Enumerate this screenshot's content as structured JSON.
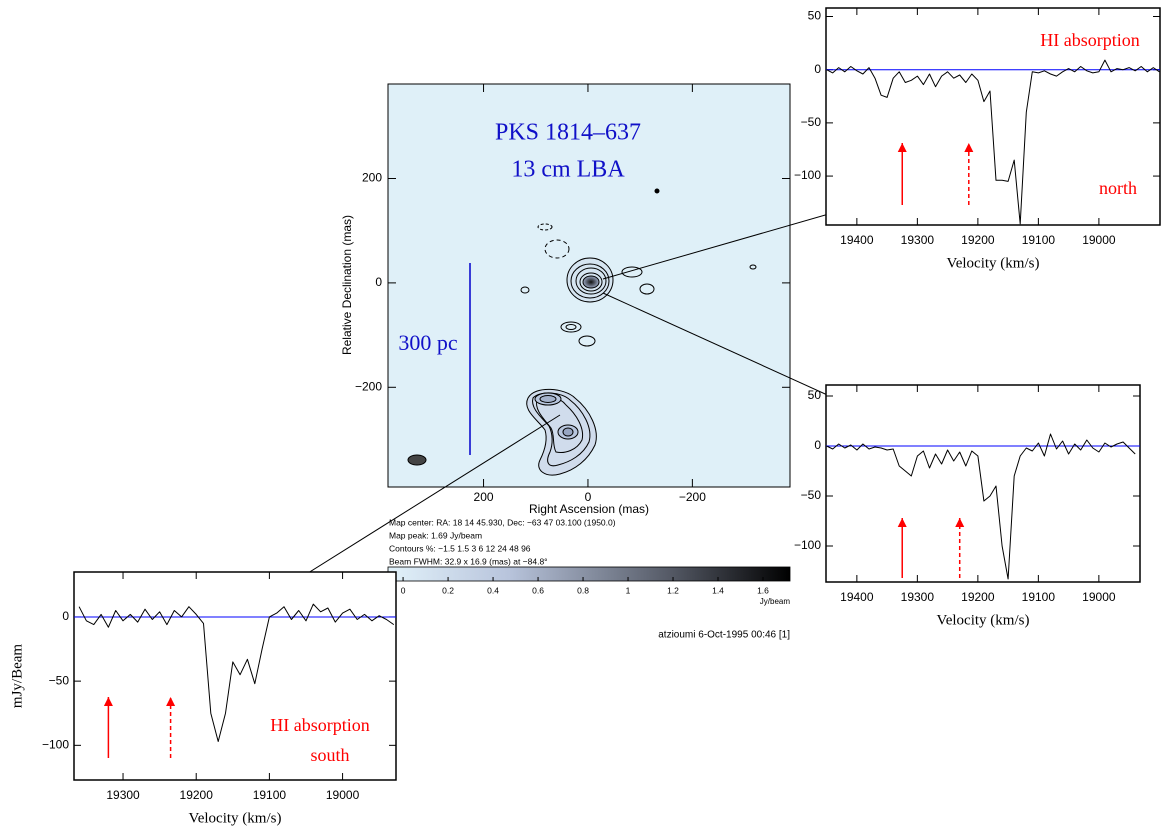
{
  "chart_data": [
    {
      "type": "contour",
      "title": "PKS 1814–637",
      "subtitle": "13 cm  LBA",
      "scale_bar_label": "300 pc",
      "xlabel": "Right Ascension  (mas)",
      "ylabel": "Relative Declination  (mas)",
      "xlim": [
        383,
        -387
      ],
      "ylim": [
        -391,
        381
      ],
      "xticks": [
        200,
        0,
        {
          "value": -200,
          "label": "−200"
        }
      ],
      "yticks": [
        200,
        0,
        {
          "value": -200,
          "label": "−200"
        }
      ],
      "info": [
        "Map center:  RA: 18 14 45.930,  Dec: −63 47 03.100 (1950.0)",
        "Map peak: 1.69 Jy/beam",
        "Contours %: −1.5 1.5 3 6 12 24 48 96",
        "Beam FWHM: 32.9 x 16.9 (mas) at −84.8°"
      ],
      "colorbar": {
        "xlim": [
          -0.067,
          1.72
        ],
        "xticks": [
          0,
          0.2,
          0.4,
          0.6,
          0.8,
          1,
          1.2,
          1.4,
          1.6
        ],
        "label": "Jy/beam"
      }
    },
    {
      "type": "line",
      "xlabel": "Velocity  (km/s)",
      "annotations": [
        "HI absorption",
        "north"
      ],
      "xlim": [
        19451,
        18899
      ],
      "ylim": [
        -146,
        58
      ],
      "xticks": [
        19400,
        19300,
        19200,
        19100,
        19000
      ],
      "yticks": [
        50,
        0,
        {
          "value": -50,
          "label": "−50"
        },
        {
          "value": -100,
          "label": "−100"
        }
      ],
      "baseline_color": "#0000ff",
      "arrow_color": "#ff0000",
      "arrows_x": [
        19325,
        19215
      ],
      "arrow_styles": [
        "solid",
        "dashed"
      ],
      "x": [
        19450,
        19440,
        19430,
        19420,
        19410,
        19400,
        19390,
        19380,
        19370,
        19360,
        19350,
        19340,
        19330,
        19320,
        19310,
        19300,
        19290,
        19280,
        19270,
        19260,
        19250,
        19240,
        19230,
        19220,
        19210,
        19200,
        19190,
        19180,
        19170,
        19160,
        19150,
        19140,
        19130,
        19120,
        19110,
        19100,
        19090,
        19080,
        19070,
        19060,
        19050,
        19040,
        19030,
        19020,
        19010,
        19000,
        18990,
        18980,
        18970,
        18960,
        18950,
        18940,
        18930,
        18920,
        18910,
        18900
      ],
      "series": [
        {
          "color": "#000000",
          "values": [
            0,
            -3,
            2,
            -2,
            3,
            -1,
            -4,
            2,
            -8,
            -24,
            -26,
            -8,
            -2,
            -12,
            -10,
            -6,
            -14,
            -4,
            -16,
            -6,
            -2,
            -8,
            -5,
            -12,
            -4,
            -10,
            -30,
            -20,
            -104,
            -104,
            -105,
            -85,
            -145,
            -40,
            -2,
            -3,
            -1,
            -4,
            -6,
            -2,
            1,
            -2,
            3,
            -1,
            -3,
            -2,
            9,
            -2,
            1,
            0,
            2,
            -1,
            3,
            -2,
            2,
            -2
          ]
        }
      ]
    },
    {
      "type": "line",
      "xlabel": "Velocity  (km/s)",
      "xlim": [
        19451,
        18932
      ],
      "ylim": [
        -136,
        61
      ],
      "xticks": [
        19400,
        19300,
        19200,
        19100,
        19000
      ],
      "yticks": [
        50,
        0,
        {
          "value": -50,
          "label": "−50"
        },
        {
          "value": -100,
          "label": "−100"
        }
      ],
      "baseline_color": "#0000ff",
      "arrow_color": "#ff0000",
      "arrows_x": [
        19325,
        19230
      ],
      "arrow_styles": [
        "solid",
        "dashed"
      ],
      "x": [
        19450,
        19440,
        19430,
        19420,
        19410,
        19400,
        19390,
        19380,
        19370,
        19360,
        19350,
        19340,
        19330,
        19320,
        19310,
        19300,
        19290,
        19280,
        19270,
        19260,
        19250,
        19240,
        19230,
        19220,
        19210,
        19200,
        19190,
        19180,
        19170,
        19160,
        19150,
        19140,
        19130,
        19120,
        19110,
        19100,
        19090,
        19080,
        19070,
        19060,
        19050,
        19040,
        19030,
        19020,
        19010,
        19000,
        18990,
        18980,
        18970,
        18960,
        18950,
        18940
      ],
      "series": [
        {
          "color": "#000000",
          "values": [
            0,
            -3,
            2,
            -2,
            1,
            -4,
            2,
            -3,
            -1,
            -2,
            -4,
            -3,
            -20,
            -25,
            -30,
            -10,
            -5,
            -22,
            -8,
            -18,
            -4,
            -15,
            -6,
            -20,
            -5,
            -10,
            -55,
            -50,
            -40,
            -100,
            -133,
            -30,
            -10,
            -2,
            -5,
            3,
            -10,
            12,
            -3,
            5,
            -8,
            2,
            -4,
            6,
            -2,
            -6,
            3,
            -1,
            2,
            4,
            -2,
            -8
          ]
        }
      ]
    },
    {
      "type": "line",
      "xlabel": "Velocity  (km/s)",
      "ylabel": "mJy/Beam",
      "annotations": [
        "HI absorption",
        "south"
      ],
      "xlim": [
        19367,
        18927
      ],
      "ylim": [
        -127,
        35
      ],
      "xticks": [
        19300,
        19200,
        19100,
        19000
      ],
      "yticks": [
        0,
        {
          "value": -50,
          "label": "−50"
        },
        {
          "value": -100,
          "label": "−100"
        }
      ],
      "baseline_color": "#0000ff",
      "arrow_color": "#ff0000",
      "arrows_x": [
        19320,
        19235
      ],
      "arrow_styles": [
        "solid",
        "dashed"
      ],
      "x": [
        19360,
        19350,
        19340,
        19330,
        19320,
        19310,
        19300,
        19290,
        19280,
        19270,
        19260,
        19250,
        19240,
        19230,
        19220,
        19210,
        19200,
        19190,
        19180,
        19170,
        19160,
        19150,
        19140,
        19130,
        19120,
        19110,
        19100,
        19090,
        19080,
        19070,
        19060,
        19050,
        19040,
        19030,
        19020,
        19010,
        19000,
        18990,
        18980,
        18970,
        18960,
        18950,
        18940,
        18930
      ],
      "series": [
        {
          "color": "#000000",
          "values": [
            8,
            -3,
            -6,
            2,
            -8,
            5,
            -3,
            2,
            -4,
            6,
            -2,
            4,
            -6,
            5,
            0,
            8,
            2,
            -5,
            -75,
            -97,
            -75,
            -35,
            -45,
            -33,
            -52,
            -25,
            0,
            3,
            8,
            -2,
            5,
            -3,
            10,
            4,
            7,
            -4,
            3,
            6,
            -2,
            2,
            -3,
            1,
            -2,
            -6
          ]
        }
      ]
    }
  ],
  "footer": "atzioumi  6-Oct-1995 00:46 [1]"
}
